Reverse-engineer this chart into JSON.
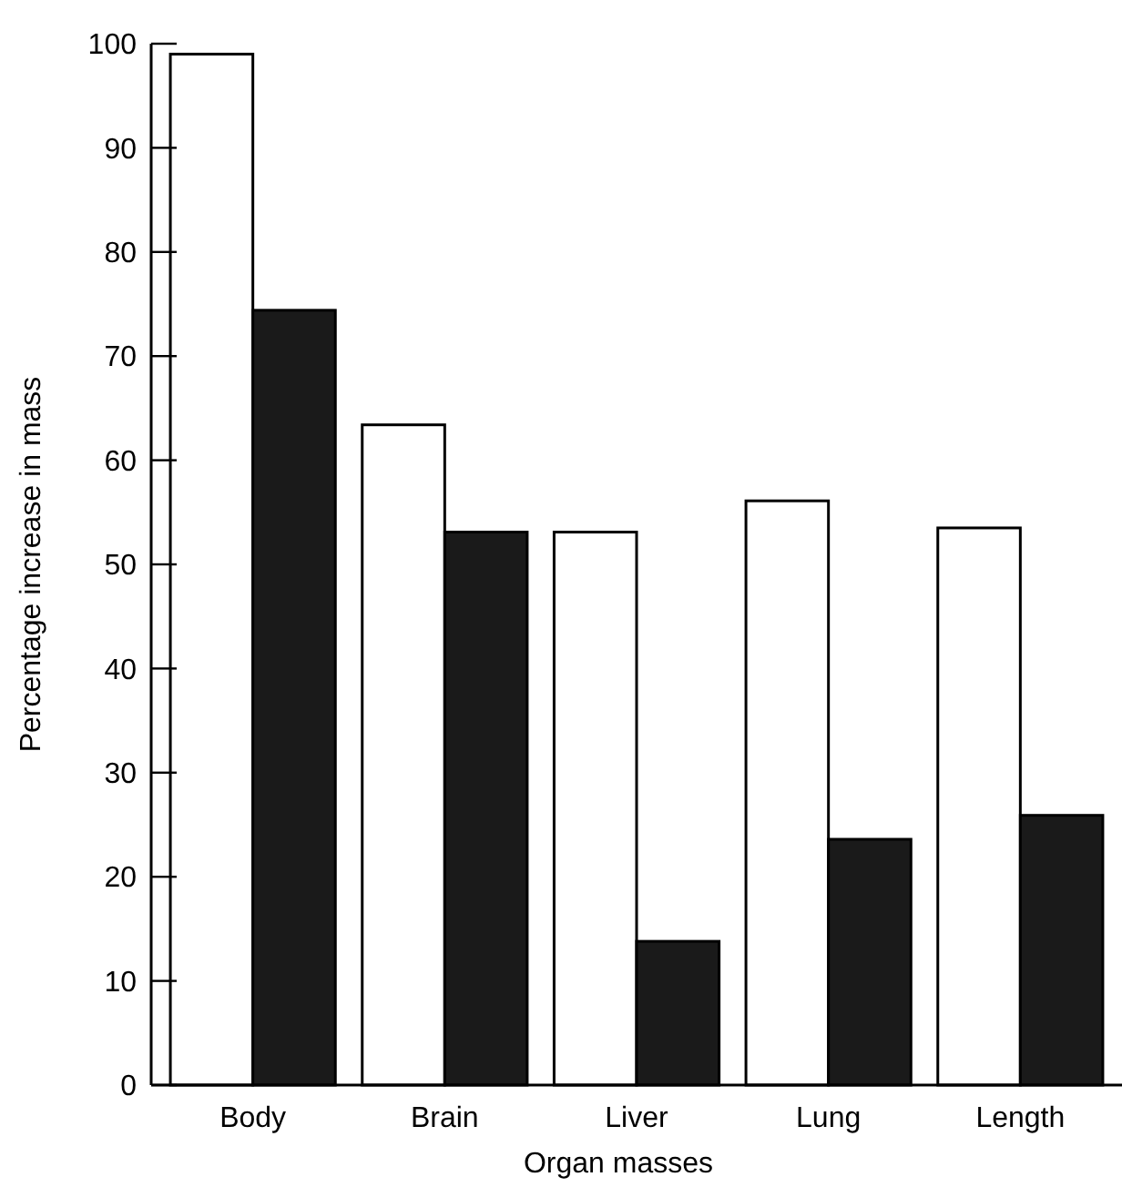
{
  "chart_data": {
    "type": "bar",
    "xlabel": "Organ masses",
    "ylabel": "Percentage increase in mass",
    "categories": [
      "Body",
      "Brain",
      "Liver",
      "Lung",
      "Length"
    ],
    "series": [
      {
        "color": "#ffffff",
        "values": [
          99,
          63.4,
          53.1,
          56.1,
          53.5
        ]
      },
      {
        "color": "#1a1a1a",
        "values": [
          74.4,
          53.1,
          13.8,
          23.6,
          25.9
        ]
      }
    ],
    "ylim": [
      0,
      100
    ],
    "yticks": [
      0,
      10,
      20,
      30,
      40,
      50,
      60,
      70,
      80,
      90,
      100
    ],
    "grid": false
  }
}
